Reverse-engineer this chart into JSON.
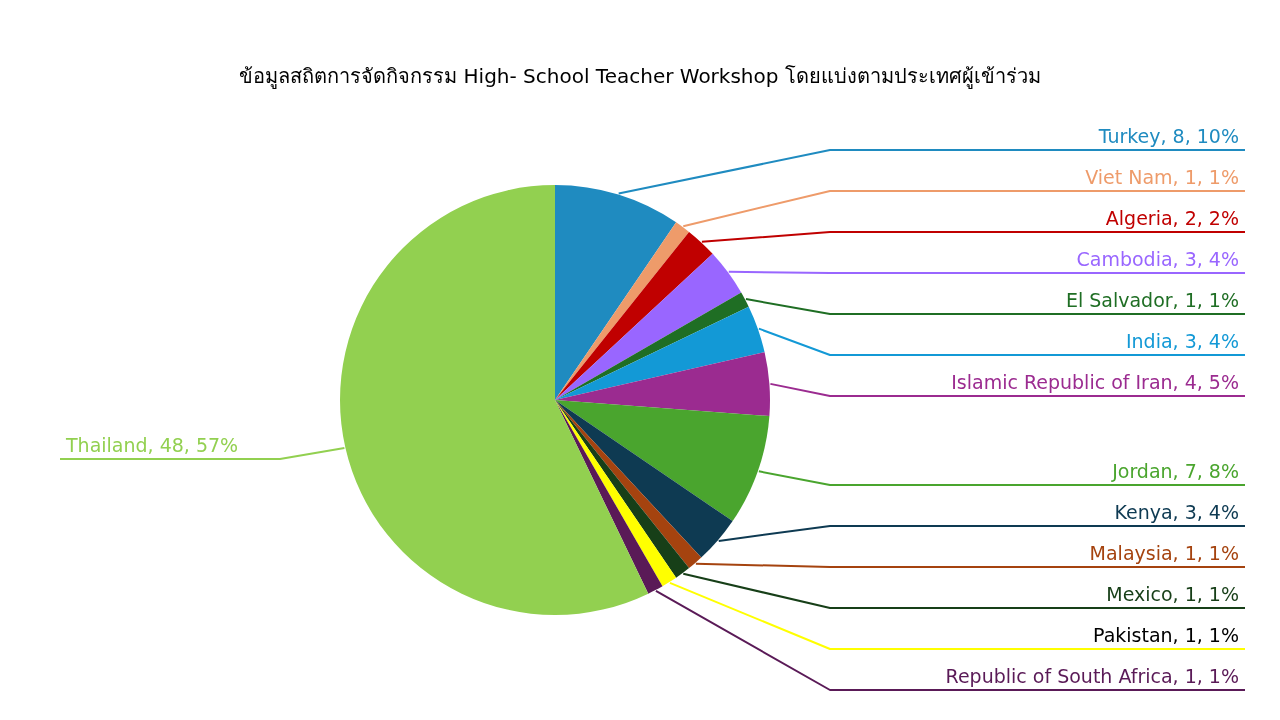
{
  "chart_data": {
    "type": "pie",
    "title": "ข้อมูลสถิตการจัดกิจกรรม High- School Teacher Workshop โดยแบ่งตามประเทศผู้เข้าร่วม",
    "categories": [
      "Turkey",
      "Viet Nam",
      "Algeria",
      "Cambodia",
      "El Salvador",
      "India",
      "Islamic Republic of Iran",
      "Jordan",
      "Kenya",
      "Malaysia",
      "Mexico",
      "Pakistan",
      "Republic of South Africa",
      "Thailand"
    ],
    "values": [
      8,
      1,
      2,
      3,
      1,
      3,
      4,
      7,
      3,
      1,
      1,
      1,
      1,
      48
    ],
    "value_labels": [
      "8, 10%",
      "1, 1%",
      "2, 2%",
      "3, 4%",
      "1, 1%",
      "3, 4%",
      "4, 5%",
      "7, 8%",
      "3, 4%",
      "1, 1%",
      "1, 1%",
      "1, 1%",
      "1, 1%",
      "48, 57%"
    ],
    "colors": [
      "#1f8bc0",
      "#ee9b6a",
      "#c00000",
      "#9966ff",
      "#1f6e24",
      "#1399d6",
      "#9b2b90",
      "#4aa52e",
      "#0e3a52",
      "#a5430f",
      "#173f18",
      "#ffff00",
      "#5a1a57",
      "#92d050"
    ]
  }
}
